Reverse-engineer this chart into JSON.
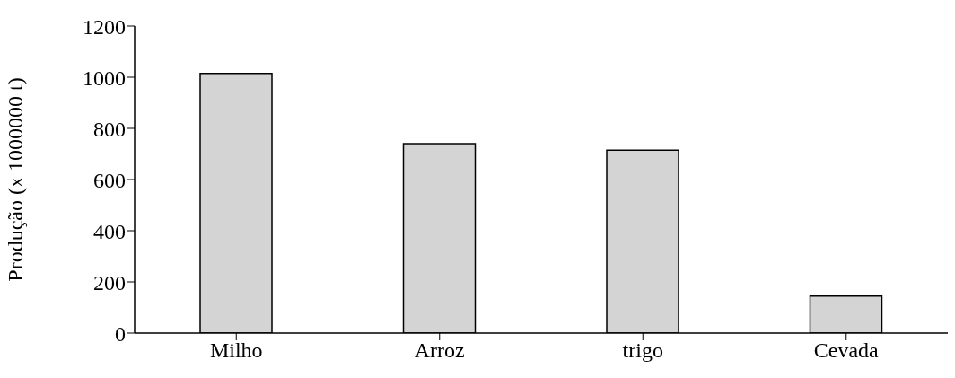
{
  "chart_data": {
    "type": "bar",
    "ylabel": "Produção (x 1000000 t)",
    "categories": [
      "Milho",
      "Arroz",
      "trigo",
      "Cevada"
    ],
    "values": [
      1015,
      740,
      715,
      145
    ],
    "color": "#d4d4d4",
    "ylim": [
      0,
      1200
    ],
    "yticks": [
      0,
      200,
      400,
      600,
      800,
      1000,
      1200
    ],
    "grid": false,
    "legend": false
  }
}
